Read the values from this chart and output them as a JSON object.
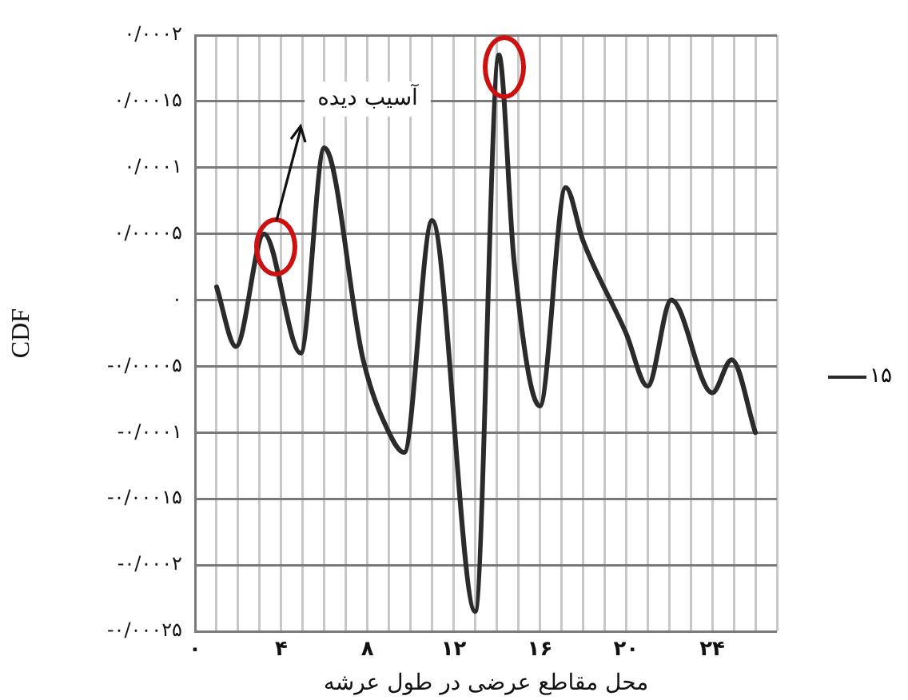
{
  "chart_data": {
    "type": "line",
    "xlabel": "محل مقاطع عرضی در طول عرشه",
    "ylabel": "CDF",
    "xlim": [
      0,
      27
    ],
    "xticks": [
      {
        "value": 0,
        "label": "۰"
      },
      {
        "value": 1,
        "label": null
      },
      {
        "value": 2,
        "label": null
      },
      {
        "value": 3,
        "label": null
      },
      {
        "value": 4,
        "label": "۴"
      },
      {
        "value": 5,
        "label": null
      },
      {
        "value": 6,
        "label": null
      },
      {
        "value": 7,
        "label": null
      },
      {
        "value": 8,
        "label": "۸"
      },
      {
        "value": 9,
        "label": null
      },
      {
        "value": 10,
        "label": null
      },
      {
        "value": 11,
        "label": null
      },
      {
        "value": 12,
        "label": "۱۲"
      },
      {
        "value": 13,
        "label": null
      },
      {
        "value": 14,
        "label": null
      },
      {
        "value": 15,
        "label": null
      },
      {
        "value": 16,
        "label": "۱۶"
      },
      {
        "value": 17,
        "label": null
      },
      {
        "value": 18,
        "label": null
      },
      {
        "value": 19,
        "label": null
      },
      {
        "value": 20,
        "label": "۲۰"
      },
      {
        "value": 21,
        "label": null
      },
      {
        "value": 22,
        "label": null
      },
      {
        "value": 23,
        "label": null
      },
      {
        "value": 24,
        "label": "۲۴"
      },
      {
        "value": 25,
        "label": null
      },
      {
        "value": 26,
        "label": null
      },
      {
        "value": 27,
        "label": null
      }
    ],
    "ylim": [
      -0.00025,
      0.0002
    ],
    "yticks": [
      {
        "value": -0.00025,
        "label": "-۰/۰۰۰۲۵"
      },
      {
        "value": -0.0002,
        "label": "-۰/۰۰۰۲"
      },
      {
        "value": -0.00015,
        "label": "-۰/۰۰۰۱۵"
      },
      {
        "value": -0.0001,
        "label": "-۰/۰۰۰۱"
      },
      {
        "value": -5e-05,
        "label": "-۰/۰۰۰۰۵"
      },
      {
        "value": 0,
        "label": "۰"
      },
      {
        "value": 5e-05,
        "label": "۰/۰۰۰۰۵"
      },
      {
        "value": 0.0001,
        "label": "۰/۰۰۰۱"
      },
      {
        "value": 0.00015,
        "label": "۰/۰۰۰۱۵"
      },
      {
        "value": 0.0002,
        "label": "۰/۰۰۰۲"
      }
    ],
    "grid": true,
    "legend": "right",
    "marker": "none",
    "annotations": [
      "آسیب دیده"
    ],
    "series": [
      {
        "name": "۱۵",
        "color": "#2b2b2b",
        "x": [
          1.0,
          1.9,
          3.2,
          4.9,
          6.0,
          7.8,
          9.0,
          9.7,
          11.0,
          13.0,
          14.1,
          14.8,
          16.0,
          17.2,
          18.0,
          20.0,
          21.0,
          22.1,
          24.0,
          24.9,
          26.0
        ],
        "values": [
          1e-05,
          -3.5e-05,
          5e-05,
          -4e-05,
          0.000115,
          -4.5e-05,
          -0.0001,
          -0.000115,
          6e-05,
          -0.000235,
          0.000185,
          3e-05,
          -8e-05,
          8.5e-05,
          4.5e-05,
          -2.5e-05,
          -6.5e-05,
          0,
          -7e-05,
          -4.5e-05,
          -0.0001
        ]
      }
    ]
  }
}
